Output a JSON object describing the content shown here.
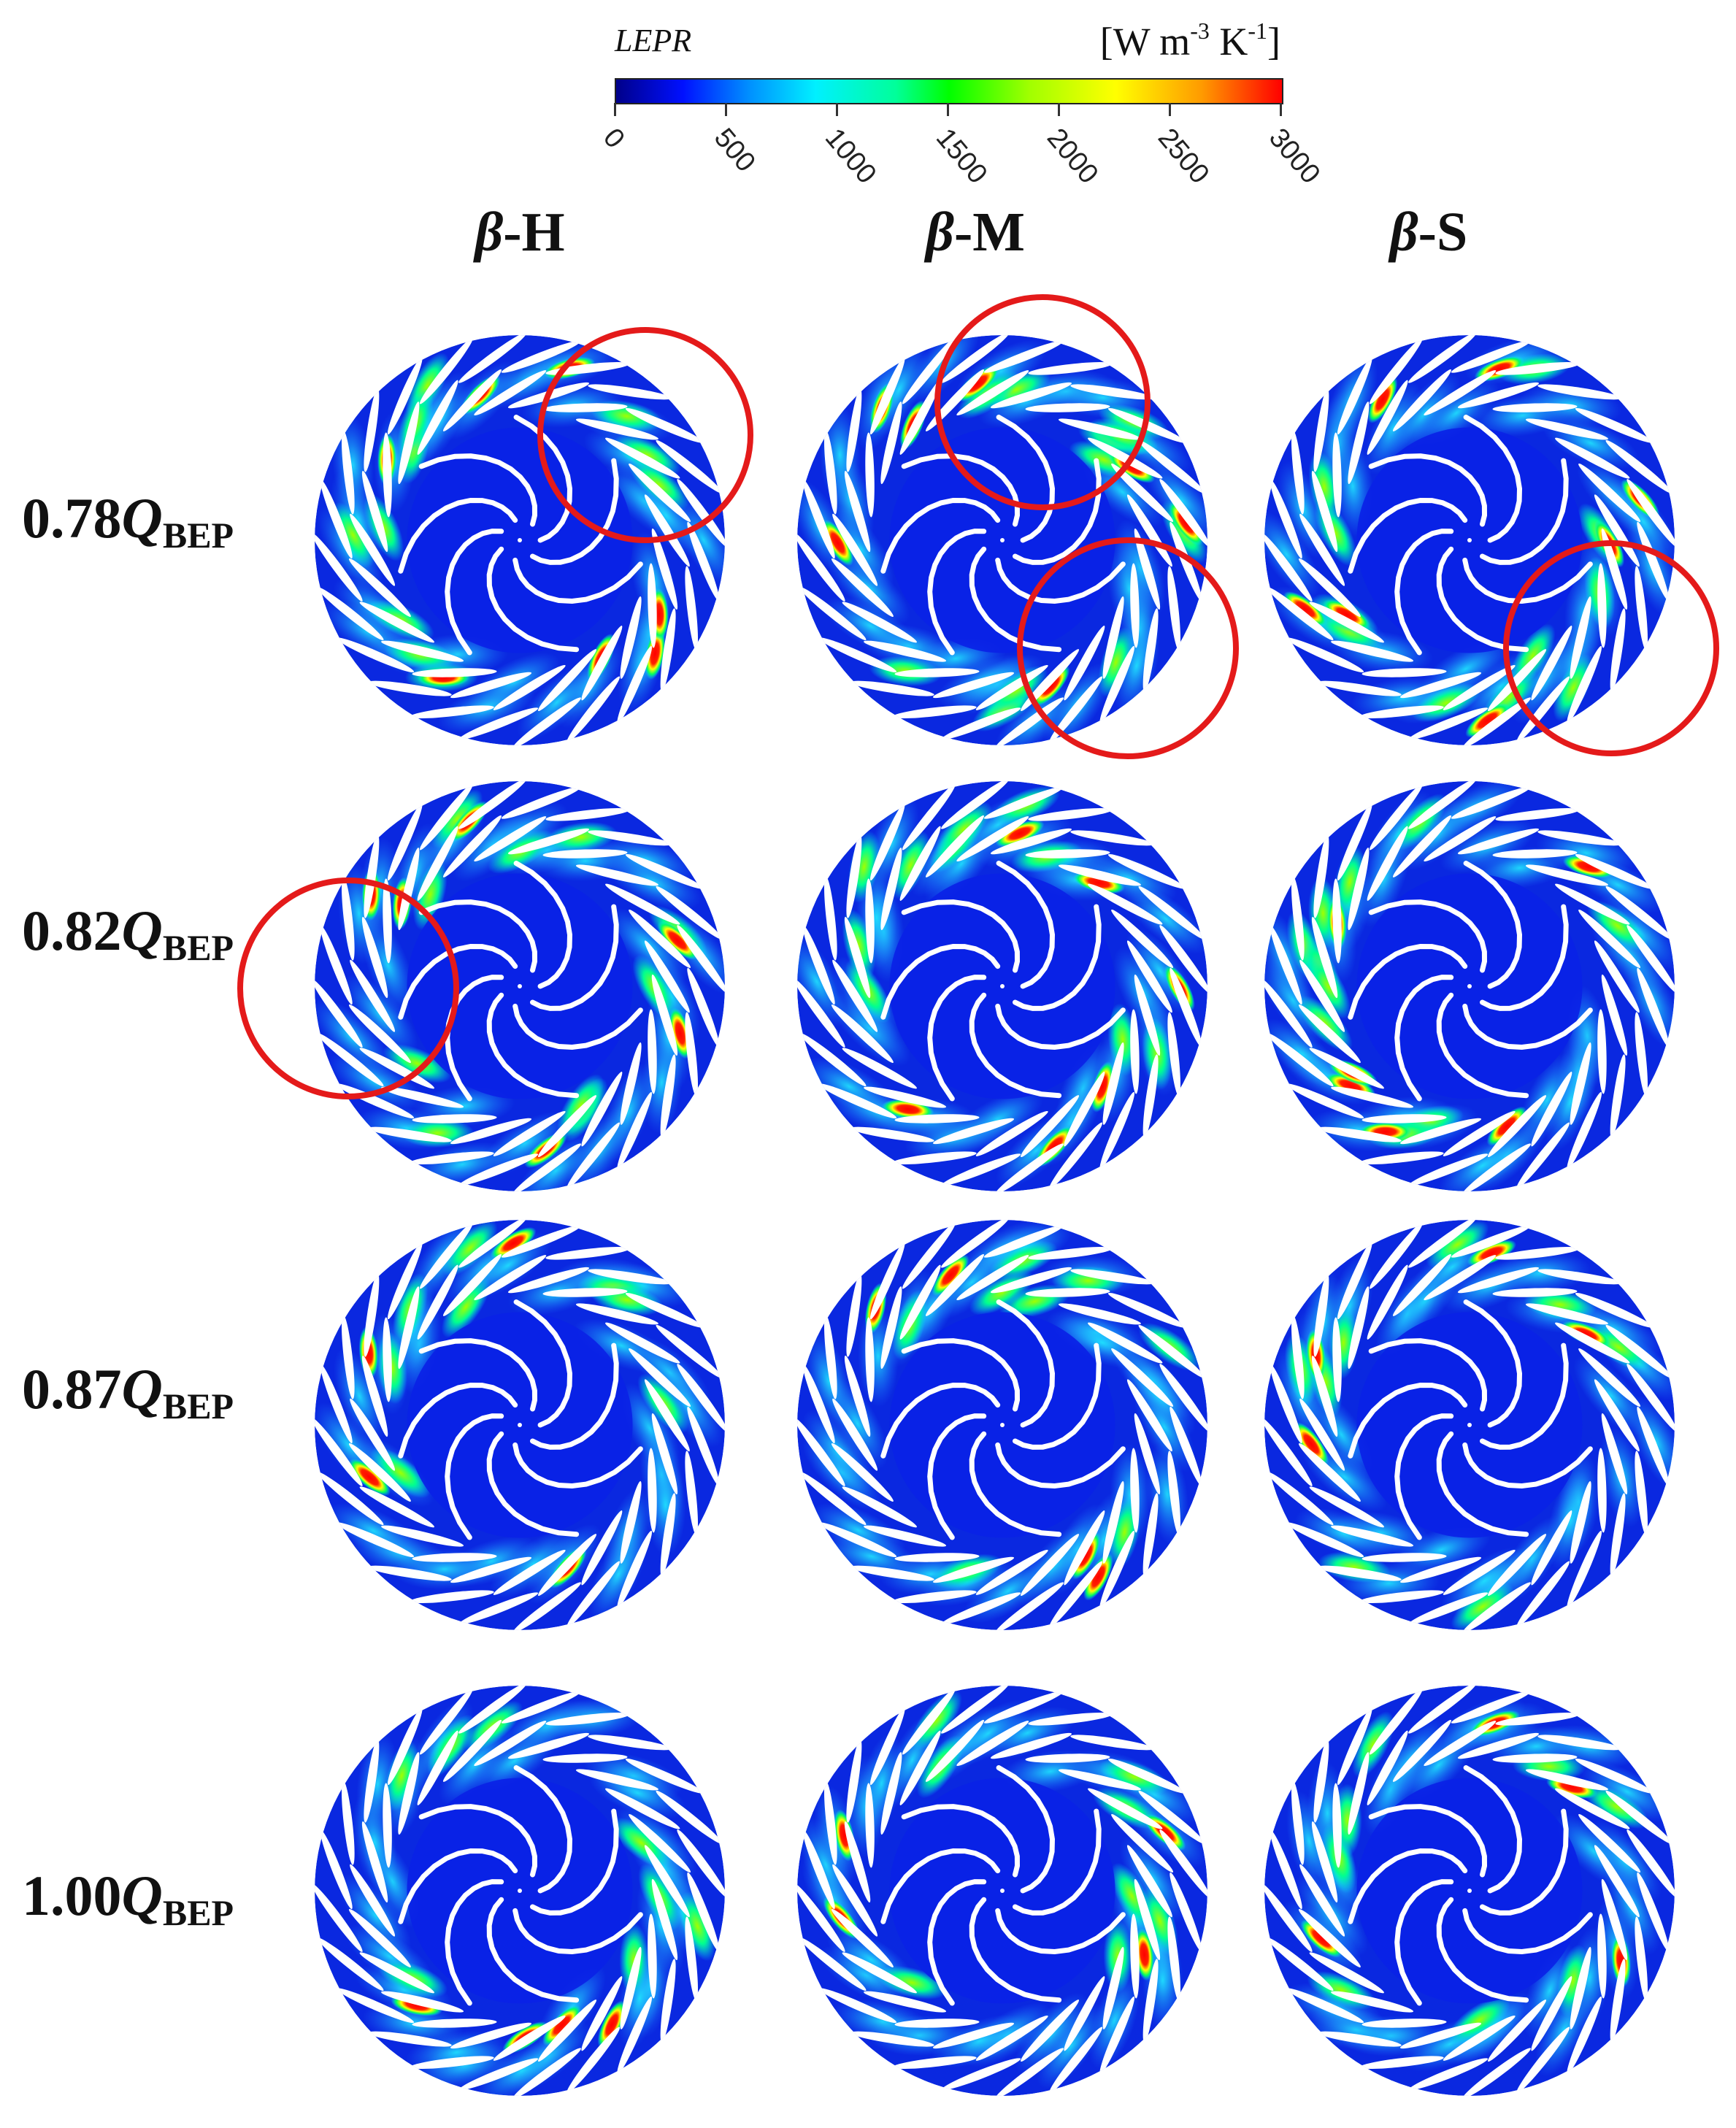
{
  "colorbar": {
    "label": "LEPR",
    "units": {
      "open": "[W m",
      "exp1": "-3",
      "mid": " K",
      "exp2": "-1",
      "close": "]"
    },
    "ticks": [
      "0",
      "500",
      "1000",
      "1500",
      "2000",
      "2500",
      "3000"
    ],
    "range": [
      0,
      3000
    ],
    "colormap": [
      "#00008a",
      "#0010ff",
      "#00f0ff",
      "#00ff00",
      "#ffff00",
      "#ff0000"
    ]
  },
  "columns": [
    {
      "greek": "β",
      "suffix": "-H"
    },
    {
      "greek": "β",
      "suffix": "-M"
    },
    {
      "greek": "β",
      "suffix": "-S"
    }
  ],
  "rows": [
    {
      "num": "0.78",
      "q": "Q",
      "sub": "BEP"
    },
    {
      "num": "0.82",
      "q": "Q",
      "sub": "BEP"
    },
    {
      "num": "0.87",
      "q": "Q",
      "sub": "BEP"
    },
    {
      "num": "1.00",
      "q": "Q",
      "sub": "BEP"
    }
  ],
  "highlight_color": "#e41a1a"
}
